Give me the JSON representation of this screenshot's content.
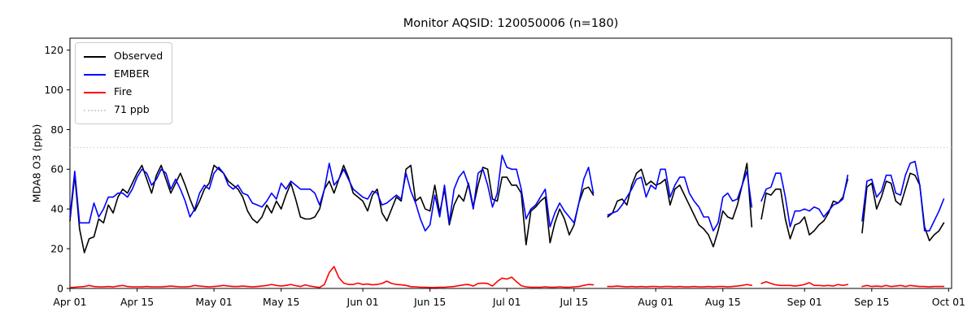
{
  "figure": {
    "title": "Monitor AQSID: 120050006 (n=180)",
    "ylabel": "MDA8 O3 (ppb)"
  },
  "chart_data": {
    "type": "line",
    "title": "Monitor AQSID: 120050006 (n=180)",
    "monitor_aqsid": "120050006",
    "n": 180,
    "xlabel": "",
    "ylabel": "MDA8 O3 (ppb)",
    "grid": false,
    "legend_position": "upper left",
    "x_unit": "days since Apr 01",
    "x_range_labels": [
      "Apr 01",
      "Oct 01"
    ],
    "ylim": [
      0,
      126
    ],
    "yticks": [
      0,
      20,
      40,
      60,
      80,
      100,
      120
    ],
    "xticks": [
      {
        "day": 0,
        "label": "Apr 01"
      },
      {
        "day": 14,
        "label": "Apr 15"
      },
      {
        "day": 30,
        "label": "May 01"
      },
      {
        "day": 44,
        "label": "May 15"
      },
      {
        "day": 61,
        "label": "Jun 01"
      },
      {
        "day": 75,
        "label": "Jun 15"
      },
      {
        "day": 91,
        "label": "Jul 01"
      },
      {
        "day": 105,
        "label": "Jul 15"
      },
      {
        "day": 122,
        "label": "Aug 01"
      },
      {
        "day": 136,
        "label": "Aug 15"
      },
      {
        "day": 153,
        "label": "Sep 01"
      },
      {
        "day": 167,
        "label": "Sep 15"
      },
      {
        "day": 183,
        "label": "Oct 01"
      }
    ],
    "threshold": {
      "value": 71,
      "label": "71 ppb",
      "color": "#d3d3d3",
      "style": "dotted"
    },
    "series": [
      {
        "name": "Observed",
        "color": "#000000",
        "values": [
          34,
          57,
          30,
          18,
          25,
          26,
          35,
          33,
          42,
          38,
          46,
          50,
          48,
          53,
          58,
          62,
          55,
          48,
          57,
          62,
          55,
          48,
          53,
          58,
          52,
          45,
          39,
          44,
          50,
          53,
          62,
          60,
          58,
          54,
          52,
          50,
          46,
          39,
          35,
          33,
          36,
          42,
          38,
          44,
          40,
          47,
          53,
          45,
          36,
          35,
          35,
          36,
          40,
          50,
          54,
          48,
          55,
          62,
          56,
          48,
          46,
          44,
          39,
          47,
          50,
          38,
          34,
          40,
          46,
          44,
          60,
          62,
          44,
          46,
          40,
          39,
          52,
          38,
          50,
          32,
          42,
          47,
          44,
          53,
          41,
          52,
          61,
          60,
          45,
          44,
          56,
          56,
          52,
          52,
          48,
          22,
          39,
          41,
          44,
          46,
          23,
          33,
          40,
          35,
          27,
          32,
          43,
          50,
          51,
          47,
          null,
          null,
          36,
          38,
          44,
          45,
          42,
          52,
          58,
          60,
          52,
          54,
          52,
          53,
          55,
          42,
          50,
          52,
          47,
          42,
          37,
          32,
          30,
          27,
          21,
          29,
          39,
          36,
          35,
          42,
          52,
          63,
          31,
          null,
          35,
          48,
          47,
          50,
          50,
          35,
          25,
          32,
          33,
          36,
          27,
          29,
          32,
          34,
          38,
          44,
          43,
          46,
          55,
          null,
          null,
          28,
          51,
          53,
          40,
          46,
          54,
          53,
          44,
          42,
          50,
          58,
          57,
          52,
          31,
          24,
          27,
          29,
          33
        ]
      },
      {
        "name": "EMBER",
        "color": "#0000ff",
        "values": [
          36,
          59,
          33,
          33,
          33,
          43,
          36,
          40,
          46,
          46,
          48,
          48,
          46,
          50,
          56,
          60,
          58,
          52,
          55,
          60,
          58,
          50,
          55,
          50,
          44,
          36,
          40,
          48,
          52,
          50,
          58,
          61,
          58,
          52,
          50,
          52,
          48,
          47,
          43,
          42,
          41,
          44,
          48,
          45,
          53,
          50,
          54,
          52,
          50,
          50,
          50,
          48,
          42,
          50,
          63,
          52,
          55,
          60,
          55,
          50,
          48,
          46,
          45,
          49,
          48,
          42,
          43,
          45,
          47,
          45,
          58,
          49,
          43,
          35,
          29,
          32,
          47,
          36,
          52,
          33,
          50,
          56,
          59,
          52,
          40,
          58,
          60,
          52,
          41,
          48,
          67,
          61,
          60,
          60,
          50,
          35,
          40,
          42,
          46,
          50,
          31,
          38,
          43,
          39,
          36,
          33,
          43,
          55,
          61,
          48,
          null,
          null,
          37,
          38,
          39,
          42,
          46,
          50,
          55,
          56,
          46,
          52,
          50,
          60,
          60,
          46,
          52,
          56,
          56,
          48,
          44,
          41,
          36,
          36,
          29,
          33,
          46,
          48,
          44,
          45,
          52,
          59,
          41,
          null,
          44,
          50,
          51,
          58,
          58,
          46,
          31,
          39,
          39,
          40,
          39,
          41,
          40,
          36,
          39,
          42,
          43,
          45,
          57,
          null,
          null,
          34,
          54,
          55,
          46,
          49,
          57,
          57,
          48,
          47,
          57,
          63,
          64,
          52,
          29,
          29,
          34,
          39,
          45
        ]
      },
      {
        "name": "Fire",
        "color": "#ff0000",
        "values": [
          0.5,
          0.6,
          0.8,
          1.0,
          1.5,
          1.0,
          0.8,
          0.8,
          1.0,
          0.8,
          1.2,
          1.5,
          1.0,
          0.8,
          0.8,
          0.8,
          1.0,
          0.8,
          0.8,
          0.8,
          1.0,
          1.2,
          1.0,
          0.8,
          0.8,
          1.0,
          1.5,
          1.2,
          1.0,
          0.8,
          1.0,
          1.2,
          1.5,
          1.2,
          1.0,
          1.0,
          1.2,
          1.0,
          0.8,
          1.0,
          1.2,
          1.5,
          2.0,
          1.5,
          1.2,
          1.5,
          2.0,
          1.4,
          1.0,
          1.8,
          1.2,
          0.8,
          0.5,
          2.0,
          8.0,
          11.0,
          5.5,
          2.7,
          2.0,
          2.0,
          2.7,
          2.0,
          2.2,
          1.8,
          2.0,
          2.5,
          3.7,
          2.5,
          2.0,
          1.8,
          1.5,
          0.9,
          0.8,
          0.6,
          0.6,
          0.5,
          0.5,
          0.6,
          0.6,
          0.8,
          1.0,
          1.4,
          1.8,
          2.0,
          1.2,
          2.5,
          2.7,
          2.5,
          1.2,
          3.5,
          5.2,
          4.7,
          5.7,
          3.4,
          1.4,
          0.8,
          0.6,
          0.6,
          0.6,
          0.8,
          0.6,
          0.6,
          0.8,
          0.6,
          0.6,
          0.8,
          1.0,
          1.5,
          2.0,
          1.8,
          null,
          null,
          1.0,
          1.0,
          1.2,
          1.0,
          0.8,
          1.0,
          0.8,
          1.0,
          0.8,
          1.0,
          1.0,
          0.8,
          1.0,
          1.0,
          0.8,
          1.0,
          0.8,
          0.8,
          1.0,
          0.8,
          0.8,
          1.0,
          0.8,
          1.0,
          1.0,
          0.8,
          1.0,
          1.2,
          1.5,
          2.0,
          1.5,
          null,
          2.5,
          3.4,
          2.5,
          1.8,
          1.5,
          1.5,
          1.5,
          1.2,
          1.5,
          2.0,
          2.9,
          1.5,
          1.5,
          1.3,
          1.5,
          1.2,
          2.0,
          1.5,
          2.0,
          null,
          null,
          1.0,
          1.5,
          1.0,
          1.2,
          1.0,
          1.5,
          1.0,
          1.2,
          1.5,
          1.0,
          1.5,
          1.2,
          1.0,
          1.0,
          0.8,
          1.0,
          1.0,
          1.0
        ]
      }
    ]
  }
}
